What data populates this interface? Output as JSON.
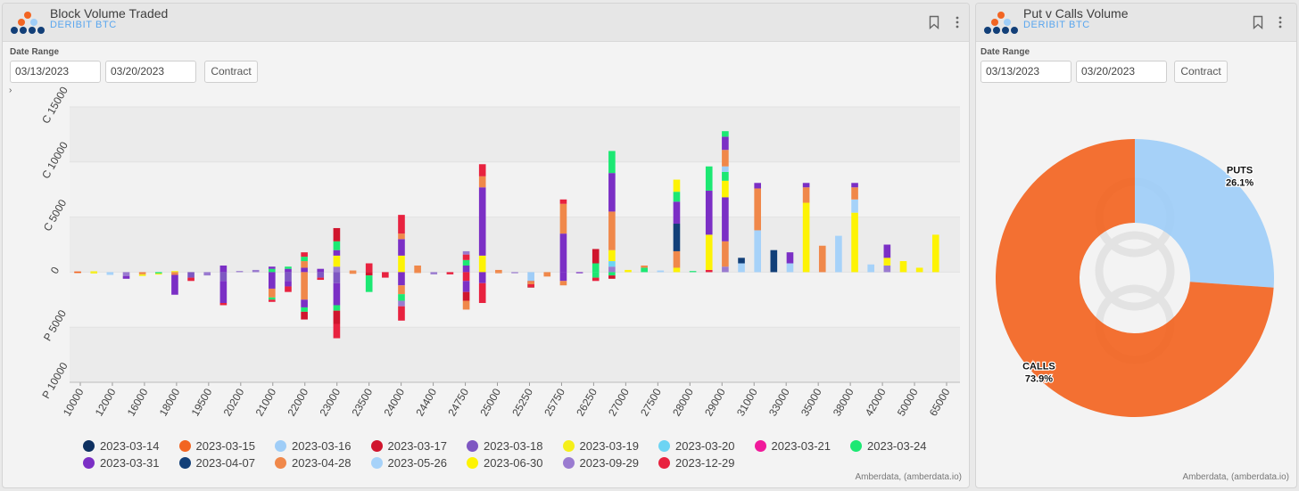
{
  "left_panel": {
    "title": "Block Volume Traded",
    "subtitle": "DERIBIT BTC",
    "date_range_label": "Date Range",
    "start_date": "03/13/2023",
    "end_date": "03/20/2023",
    "contract_label": "Contract",
    "expand_glyph": "›",
    "footer": "Amberdata, (amberdata.io)"
  },
  "right_panel": {
    "title": "Put v Calls Volume",
    "subtitle": "DERIBIT BTC",
    "date_range_label": "Date Range",
    "start_date": "03/13/2023",
    "end_date": "03/20/2023",
    "contract_label": "Contract",
    "footer": "Amberdata, (amberdata.io)"
  },
  "icons": {
    "logo": "amberdata-logo-icon",
    "bookmark": "bookmark-icon",
    "menu": "kebab-menu-icon"
  },
  "chart_data": [
    {
      "type": "bar",
      "stacked": true,
      "ylim": [
        -10000,
        15000
      ],
      "y_ticks": [
        {
          "value": 15000,
          "label": "C 15000"
        },
        {
          "value": 10000,
          "label": "C 10000"
        },
        {
          "value": 5000,
          "label": "C 5000"
        },
        {
          "value": 0,
          "label": "0"
        },
        {
          "value": -5000,
          "label": "P 5000"
        },
        {
          "value": -10000,
          "label": "P 10000"
        }
      ],
      "categories": [
        "10000",
        "11000",
        "12000",
        "14000",
        "16000",
        "17000",
        "18000",
        "19000",
        "19500",
        "20000",
        "20200",
        "20500",
        "21000",
        "21500",
        "22000",
        "22500",
        "23000",
        "23250",
        "23500",
        "23750",
        "24000",
        "24250",
        "24400",
        "24500",
        "24750",
        "24900",
        "25000",
        "25100",
        "25250",
        "25500",
        "25750",
        "26000",
        "26250",
        "26500",
        "27000",
        "27250",
        "27500",
        "27750",
        "28000",
        "28500",
        "29000",
        "30000",
        "31000",
        "32000",
        "33000",
        "34000",
        "35000",
        "36000",
        "38000",
        "40000",
        "42000",
        "45000",
        "50000",
        "55000",
        "65000"
      ],
      "x_tick_labels": [
        "10000",
        "12000",
        "16000",
        "18000",
        "19500",
        "20200",
        "21000",
        "22000",
        "23000",
        "23500",
        "24000",
        "24400",
        "24750",
        "25000",
        "25250",
        "25750",
        "26250",
        "27000",
        "27500",
        "28000",
        "29000",
        "31000",
        "33000",
        "35000",
        "38000",
        "42000",
        "50000",
        "65000"
      ],
      "series": [
        {
          "name": "2023-03-14",
          "color": "#0e3060"
        },
        {
          "name": "2023-03-15",
          "color": "#f26522"
        },
        {
          "name": "2023-03-16",
          "color": "#9fcdf7"
        },
        {
          "name": "2023-03-17",
          "color": "#d0152d"
        },
        {
          "name": "2023-03-18",
          "color": "#7e57c2"
        },
        {
          "name": "2023-03-19",
          "color": "#f5ef1a"
        },
        {
          "name": "2023-03-20",
          "color": "#6dd4f3"
        },
        {
          "name": "2023-03-21",
          "color": "#f01a9b"
        },
        {
          "name": "2023-03-24",
          "color": "#1ce873"
        },
        {
          "name": "2023-03-31",
          "color": "#7b2fc5"
        },
        {
          "name": "2023-04-07",
          "color": "#123f78"
        },
        {
          "name": "2023-04-28",
          "color": "#f0884a"
        },
        {
          "name": "2023-05-26",
          "color": "#a6d2f9"
        },
        {
          "name": "2023-06-30",
          "color": "#fdf304"
        },
        {
          "name": "2023-09-29",
          "color": "#9a7bd0"
        },
        {
          "name": "2023-12-29",
          "color": "#e8223f"
        }
      ],
      "stacks": [
        [
          [
            "2023-03-15",
            60
          ]
        ],
        [
          [
            "2023-03-15",
            -80
          ]
        ],
        [
          [
            "2023-03-19",
            80
          ]
        ],
        [
          [
            "2023-03-19",
            -120
          ]
        ],
        [
          [
            "2023-05-26",
            -250
          ]
        ],
        [
          [
            "2023-09-29",
            -350
          ],
          [
            "2023-03-31",
            -250
          ]
        ],
        [
          [
            "2023-04-28",
            -200
          ],
          [
            "2023-03-19",
            -150
          ]
        ],
        [
          [
            "2023-03-24",
            -120
          ],
          [
            "2023-03-19",
            -100
          ]
        ],
        [
          [
            "2023-03-19",
            100
          ]
        ],
        [
          [
            "2023-04-28",
            -250
          ],
          [
            "2023-03-31",
            -1800
          ]
        ],
        [
          [
            "2023-03-18",
            -500
          ],
          [
            "2023-12-29",
            -300
          ]
        ],
        [
          [
            "2023-09-29",
            -300
          ]
        ],
        [
          [
            "2023-03-31",
            600
          ]
        ],
        [
          [
            "2023-03-18",
            -800
          ],
          [
            "2023-03-31",
            -2000
          ],
          [
            "2023-12-29",
            -200
          ]
        ],
        [
          [
            "2023-09-29",
            100
          ]
        ],
        [
          [
            "2023-09-29",
            200
          ]
        ],
        [
          [
            "2023-03-24",
            300
          ],
          [
            "2023-03-31",
            200
          ]
        ],
        [
          [
            "2023-03-31",
            -1500
          ],
          [
            "2023-04-28",
            -800
          ],
          [
            "2023-03-24",
            -200
          ],
          [
            "2023-12-29",
            -200
          ]
        ],
        [
          [
            "2023-03-31",
            300
          ],
          [
            "2023-03-24",
            200
          ]
        ],
        [
          [
            "2023-03-18",
            -800
          ],
          [
            "2023-03-31",
            -500
          ],
          [
            "2023-12-29",
            -500
          ]
        ],
        [
          [
            "2023-03-31",
            400
          ],
          [
            "2023-04-28",
            600
          ],
          [
            "2023-03-24",
            400
          ],
          [
            "2023-12-29",
            400
          ]
        ],
        [
          [
            "2023-04-28",
            -2500
          ],
          [
            "2023-03-31",
            -700
          ],
          [
            "2023-03-24",
            -400
          ],
          [
            "2023-03-17",
            -700
          ]
        ],
        [
          [
            "2023-03-31",
            300
          ]
        ],
        [
          [
            "2023-03-18",
            -500
          ],
          [
            "2023-12-29",
            -200
          ]
        ],
        [
          [
            "2023-09-29",
            500
          ],
          [
            "2023-06-30",
            1000
          ],
          [
            "2023-03-31",
            500
          ],
          [
            "2023-03-24",
            800
          ],
          [
            "2023-03-17",
            1200
          ]
        ],
        [
          [
            "2023-03-18",
            -1000
          ],
          [
            "2023-03-31",
            -2000
          ],
          [
            "2023-03-24",
            -500
          ],
          [
            "2023-03-17",
            -1200
          ],
          [
            "2023-12-29",
            -1300
          ]
        ],
        [
          [
            "2023-04-28",
            150
          ]
        ],
        [
          [
            "2023-04-28",
            -150
          ]
        ],
        [
          [
            "2023-12-29",
            800
          ]
        ],
        [
          [
            "2023-03-17",
            -300
          ],
          [
            "2023-03-24",
            -1500
          ]
        ],
        [
          [
            "2023-12-29",
            -500
          ]
        ],
        [
          [
            "2023-06-30",
            1500
          ],
          [
            "2023-03-31",
            1500
          ],
          [
            "2023-04-28",
            500
          ],
          [
            "2023-12-29",
            1700
          ]
        ],
        [
          [
            "2023-03-31",
            -1200
          ],
          [
            "2023-04-28",
            -800
          ],
          [
            "2023-03-24",
            -600
          ],
          [
            "2023-09-29",
            -500
          ],
          [
            "2023-12-29",
            -1300
          ]
        ],
        [
          [
            "2023-04-28",
            600
          ]
        ],
        [
          [
            "2023-04-28",
            -80
          ]
        ],
        [
          [
            "2023-09-29",
            -200
          ]
        ],
        [
          [
            "2023-12-29",
            -200
          ]
        ],
        [
          [
            "2023-03-31",
            600
          ],
          [
            "2023-03-24",
            500
          ],
          [
            "2023-12-29",
            500
          ],
          [
            "2023-09-29",
            300
          ]
        ],
        [
          [
            "2023-12-29",
            -800
          ],
          [
            "2023-03-31",
            -1000
          ],
          [
            "2023-03-17",
            -800
          ],
          [
            "2023-04-28",
            -800
          ]
        ],
        [
          [
            "2023-06-30",
            1500
          ],
          [
            "2023-03-31",
            6200
          ],
          [
            "2023-04-28",
            1000
          ],
          [
            "2023-12-29",
            1100
          ]
        ],
        [
          [
            "2023-03-31",
            -1000
          ],
          [
            "2023-12-29",
            -1800
          ]
        ],
        [
          [
            "2023-04-28",
            200
          ]
        ],
        [
          [
            "2023-04-28",
            -100
          ]
        ],
        [
          [
            "2023-09-29",
            -100
          ]
        ],
        [
          [
            "2023-03-16",
            -800
          ],
          [
            "2023-03-31",
            -300
          ],
          [
            "2023-03-24",
            -300
          ],
          [
            "2023-12-29",
            300
          ],
          [
            "2023-04-28",
            300
          ]
        ],
        [
          [
            "2023-04-28",
            -400
          ]
        ],
        [
          [
            "2023-03-31",
            3500
          ],
          [
            "2023-04-28",
            2700
          ],
          [
            "2023-12-29",
            400
          ]
        ],
        [
          [
            "2023-03-31",
            -800
          ],
          [
            "2023-04-28",
            -400
          ]
        ],
        [
          [
            "2023-03-31",
            -100
          ]
        ],
        [
          [
            "2023-03-24",
            800
          ],
          [
            "2023-03-17",
            1300
          ]
        ],
        [
          [
            "2023-03-24",
            -500
          ],
          [
            "2023-12-29",
            -300
          ]
        ],
        [
          [
            "2023-09-29",
            500
          ],
          [
            "2023-03-20",
            500
          ],
          [
            "2023-06-30",
            1000
          ],
          [
            "2023-04-28",
            3500
          ],
          [
            "2023-03-31",
            3500
          ],
          [
            "2023-03-24",
            2000
          ]
        ],
        [
          [
            "2023-03-24",
            -300
          ],
          [
            "2023-03-17",
            -300
          ]
        ],
        [
          [
            "2023-06-30",
            200
          ]
        ],
        [
          [
            "2023-03-24",
            400
          ],
          [
            "2023-04-28",
            200
          ]
        ],
        [
          [
            "2023-05-26",
            150
          ]
        ],
        [
          [
            "2023-06-30",
            400
          ],
          [
            "2023-04-28",
            1500
          ],
          [
            "2023-04-07",
            2500
          ],
          [
            "2023-03-31",
            2000
          ],
          [
            "2023-03-24",
            900
          ],
          [
            "2023-06-30",
            1100
          ]
        ],
        [
          [
            "2023-03-24",
            100
          ]
        ],
        [
          [
            "2023-12-29",
            200
          ],
          [
            "2023-06-30",
            3200
          ],
          [
            "2023-03-31",
            4000
          ],
          [
            "2023-03-24",
            2200
          ]
        ],
        [
          [
            "2023-09-29",
            500
          ],
          [
            "2023-04-28",
            2300
          ],
          [
            "2023-03-31",
            4000
          ],
          [
            "2023-06-30",
            1500
          ],
          [
            "2023-03-24",
            800
          ],
          [
            "2023-03-16",
            500
          ],
          [
            "2023-04-28",
            1500
          ],
          [
            "2023-03-31",
            1200
          ],
          [
            "2023-03-24",
            500
          ]
        ],
        [
          [
            "2023-05-26",
            800
          ],
          [
            "2023-04-07",
            500
          ]
        ],
        [
          [
            "2023-05-26",
            3800
          ],
          [
            "2023-04-28",
            3800
          ],
          [
            "2023-03-31",
            500
          ]
        ],
        [
          [
            "2023-04-07",
            2000
          ]
        ],
        [
          [
            "2023-05-26",
            800
          ],
          [
            "2023-03-31",
            1000
          ]
        ],
        [
          [
            "2023-06-30",
            6300
          ],
          [
            "2023-04-28",
            1400
          ],
          [
            "2023-03-31",
            400
          ]
        ],
        [
          [
            "2023-04-28",
            2400
          ]
        ],
        [
          [
            "2023-05-26",
            3300
          ]
        ],
        [
          [
            "2023-06-30",
            5400
          ],
          [
            "2023-05-26",
            1200
          ],
          [
            "2023-04-28",
            1100
          ],
          [
            "2023-03-31",
            400
          ]
        ],
        [
          [
            "2023-05-26",
            700
          ]
        ],
        [
          [
            "2023-09-29",
            600
          ],
          [
            "2023-06-30",
            700
          ],
          [
            "2023-03-31",
            1200
          ]
        ],
        [
          [
            "2023-06-30",
            1000
          ]
        ],
        [
          [
            "2023-06-30",
            400
          ]
        ],
        [
          [
            "2023-06-30",
            3400
          ]
        ]
      ]
    },
    {
      "type": "pie",
      "donut": true,
      "slices": [
        {
          "name": "PUTS",
          "value": 26.1,
          "label": "26.1%",
          "color": "#9fcdf7"
        },
        {
          "name": "CALLS",
          "value": 73.9,
          "label": "73.9%",
          "color": "#f26522"
        }
      ]
    }
  ]
}
